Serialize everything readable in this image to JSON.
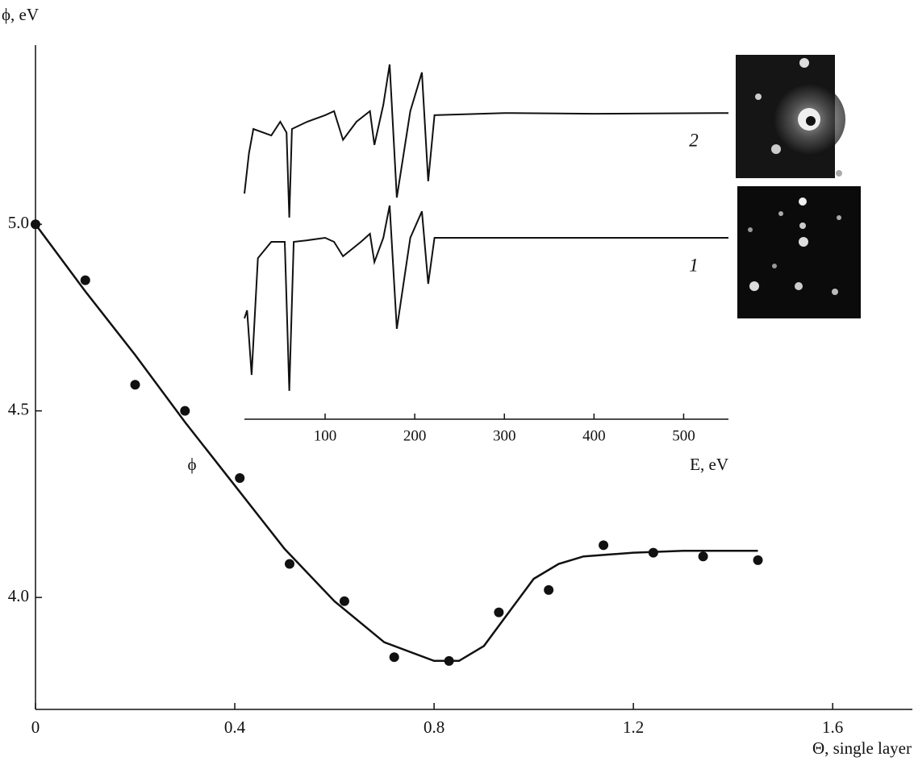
{
  "chart_data": [
    {
      "type": "scatter",
      "y_label": "ϕ, eV",
      "x_label": "Θ, single layer",
      "annotation": "ϕ",
      "color": "#111111",
      "x": [
        0,
        0.1,
        0.2,
        0.3,
        0.41,
        0.51,
        0.62,
        0.72,
        0.83,
        0.93,
        1.03,
        1.14,
        1.24,
        1.34,
        1.45
      ],
      "values": [
        5.0,
        4.85,
        4.57,
        4.5,
        4.32,
        4.09,
        3.99,
        3.84,
        3.83,
        3.96,
        4.02,
        4.14,
        4.12,
        4.11,
        4.1
      ],
      "fit_x": [
        0,
        0.1,
        0.2,
        0.3,
        0.4,
        0.5,
        0.6,
        0.7,
        0.8,
        0.85,
        0.9,
        0.95,
        1.0,
        1.05,
        1.1,
        1.2,
        1.3,
        1.45
      ],
      "fit_values": [
        5.0,
        4.82,
        4.65,
        4.47,
        4.3,
        4.13,
        3.99,
        3.88,
        3.83,
        3.83,
        3.87,
        3.96,
        4.05,
        4.09,
        4.11,
        4.12,
        4.125,
        4.125
      ],
      "xlim": [
        0,
        1.76
      ],
      "ylim": [
        3.7,
        5.48
      ],
      "xticks": [
        0,
        0.4,
        0.8,
        1.2,
        1.6
      ],
      "yticks": [
        {
          "value": 4.0,
          "label": "4.0"
        },
        {
          "value": 4.5,
          "label": "4.5"
        },
        {
          "value": 5.0,
          "label": "5.0"
        }
      ]
    },
    {
      "type": "line",
      "x_label": "E, eV",
      "xlim": [
        10,
        550
      ],
      "ylim": [
        0,
        100
      ],
      "xticks": [
        100,
        200,
        300,
        400,
        500
      ],
      "series": [
        {
          "name": "2",
          "color": "#111111",
          "x": [
            10,
            15,
            20,
            40,
            50,
            57,
            60,
            63,
            80,
            100,
            110,
            120,
            135,
            150,
            155,
            165,
            172,
            180,
            195,
            208,
            215,
            222,
            300,
            400,
            550
          ],
          "values": [
            62.2,
            73.3,
            80,
            78.2,
            82,
            79,
            55.6,
            80,
            82,
            83.8,
            84.9,
            77,
            82,
            84.9,
            75.6,
            86.7,
            97.8,
            61.1,
            84.9,
            95.6,
            65.6,
            83.8,
            84.4,
            84.2,
            84.4
          ]
        },
        {
          "name": "1",
          "color": "#111111",
          "x": [
            10,
            13,
            18,
            25,
            40,
            55,
            60,
            65,
            80,
            100,
            110,
            120,
            140,
            150,
            155,
            165,
            172,
            180,
            195,
            208,
            215,
            222,
            300,
            550
          ],
          "values": [
            27.8,
            30,
            12.2,
            44.4,
            48.9,
            48.9,
            7.8,
            48.9,
            49.3,
            50,
            48.9,
            44.9,
            48.9,
            51.1,
            43.3,
            50,
            58.9,
            24.9,
            50,
            57.3,
            37.3,
            50,
            50,
            50
          ]
        }
      ]
    }
  ]
}
